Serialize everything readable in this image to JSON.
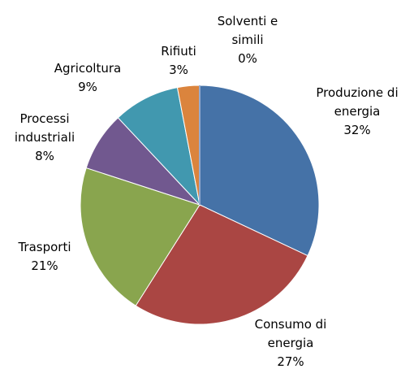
{
  "chart_data": {
    "type": "pie",
    "categories": [
      "Produzione di energia",
      "Consumo di energia",
      "Trasporti",
      "Processi industriali",
      "Agricoltura",
      "Rifiuti",
      "Solventi e simili"
    ],
    "values": [
      32,
      27,
      21,
      8,
      9,
      3,
      0
    ],
    "value_labels": [
      "32%",
      "27%",
      "21%",
      "8%",
      "9%",
      "3%",
      "0%"
    ],
    "colors": [
      "#4572a7",
      "#aa4643",
      "#89a54e",
      "#71588f",
      "#4198af",
      "#db843d",
      "#93a9cf"
    ]
  }
}
